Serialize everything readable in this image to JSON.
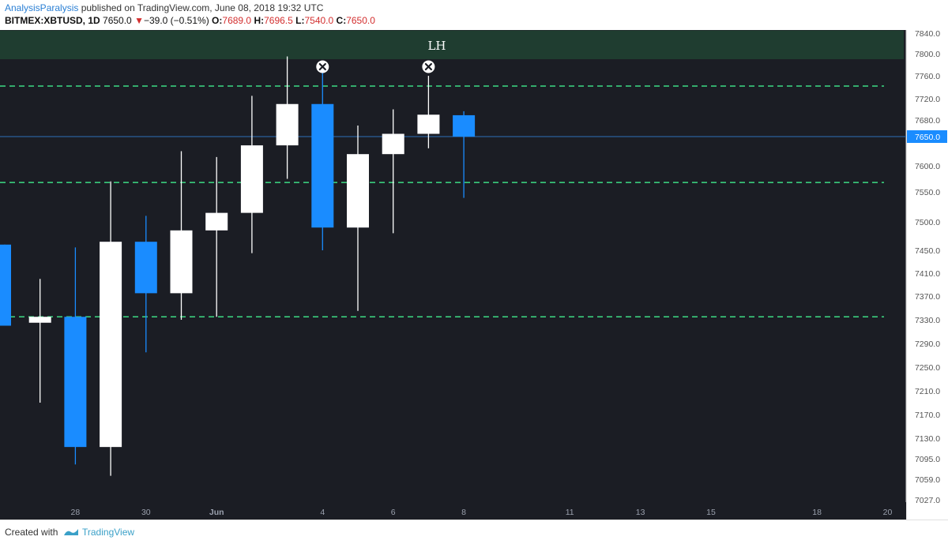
{
  "header": {
    "author": "AnalysisParalysis",
    "published": " published on TradingView.com, June 08, 2018 19:32 UTC",
    "symbol": "BITMEX:XBTUSD, 1D",
    "last": "7650.0",
    "change": "−39.0 (−0.51%)",
    "o_label": "O:",
    "o_value": "7689.0",
    "h_label": "H:",
    "h_value": "7696.5",
    "l_label": "L:",
    "l_value": "7540.0",
    "c_label": "C:",
    "c_value": "7650.0"
  },
  "footer": {
    "created_with": "Created with",
    "brand": "TradingView"
  },
  "colors": {
    "background": "#1b1d24",
    "bull": "#ffffff",
    "bear": "#1a8cff",
    "dashed_line": "#3ddc84",
    "lh_zone": "#1f3d30",
    "price_tag": "#1a8cff"
  },
  "chart_data": {
    "type": "candlestick",
    "symbol": "BITMEX:XBTUSD",
    "interval": "1D",
    "x_tick_labels": [
      "28",
      "30",
      "Jun",
      "4",
      "6",
      "8",
      "11",
      "13",
      "15",
      "18",
      "20"
    ],
    "y_tick_labels": [
      "7840.0",
      "7800.0",
      "7760.0",
      "7720.0",
      "7680.0",
      "7650.0",
      "7600.0",
      "7550.0",
      "7500.0",
      "7450.0",
      "7410.0",
      "7370.0",
      "7330.0",
      "7290.0",
      "7250.0",
      "7210.0",
      "7170.0",
      "7130.0",
      "7095.0",
      "7059.0",
      "7027.0"
    ],
    "candles": [
      {
        "date": "May 26",
        "open": 7460,
        "high": 7460,
        "low": 7320,
        "close": 7320
      },
      {
        "date": "May 27",
        "open": 7325,
        "high": 7400,
        "low": 7190,
        "close": 7335
      },
      {
        "date": "May 28",
        "open": 7335,
        "high": 7455,
        "low": 7085,
        "close": 7115
      },
      {
        "date": "May 29",
        "open": 7115,
        "high": 7570,
        "low": 7065,
        "close": 7465
      },
      {
        "date": "May 30",
        "open": 7465,
        "high": 7510,
        "low": 7275,
        "close": 7375
      },
      {
        "date": "May 31",
        "open": 7375,
        "high": 7625,
        "low": 7330,
        "close": 7485
      },
      {
        "date": "Jun 1",
        "open": 7485,
        "high": 7615,
        "low": 7335,
        "close": 7515
      },
      {
        "date": "Jun 2",
        "open": 7515,
        "high": 7725,
        "low": 7445,
        "close": 7635
      },
      {
        "date": "Jun 3",
        "open": 7635,
        "high": 7795,
        "low": 7575,
        "close": 7710
      },
      {
        "date": "Jun 4",
        "open": 7710,
        "high": 7765,
        "low": 7450,
        "close": 7490
      },
      {
        "date": "Jun 5",
        "open": 7490,
        "high": 7670,
        "low": 7345,
        "close": 7620
      },
      {
        "date": "Jun 6",
        "open": 7620,
        "high": 7700,
        "low": 7480,
        "close": 7655
      },
      {
        "date": "Jun 7",
        "open": 7655,
        "high": 7760,
        "low": 7630,
        "close": 7690
      },
      {
        "date": "Jun 8",
        "open": 7689,
        "high": 7696.5,
        "low": 7540,
        "close": 7650
      }
    ],
    "horizontal_lines": [
      7742,
      7568,
      7335
    ],
    "current_price": 7650,
    "zone_label": "LH",
    "zone_range": [
      7790,
      7845
    ],
    "markers": [
      {
        "date": "Jun 4",
        "price": 7775,
        "icon": "x-circle-icon"
      },
      {
        "date": "Jun 7",
        "price": 7775,
        "icon": "x-circle-icon"
      }
    ]
  }
}
